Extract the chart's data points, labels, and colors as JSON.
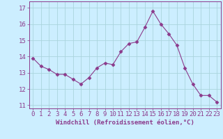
{
  "x": [
    0,
    1,
    2,
    3,
    4,
    5,
    6,
    7,
    8,
    9,
    10,
    11,
    12,
    13,
    14,
    15,
    16,
    17,
    18,
    19,
    20,
    21,
    22,
    23
  ],
  "y": [
    13.9,
    13.4,
    13.2,
    12.9,
    12.9,
    12.6,
    12.3,
    12.7,
    13.3,
    13.6,
    13.5,
    14.3,
    14.8,
    14.9,
    15.8,
    16.8,
    16.0,
    15.4,
    14.7,
    13.3,
    12.3,
    11.6,
    11.6,
    11.2
  ],
  "line_color": "#8b3a8b",
  "marker": "D",
  "marker_size": 2.5,
  "bg_color": "#cceeff",
  "grid_color": "#aad4dd",
  "xlabel": "Windchill (Refroidissement éolien,°C)",
  "xlabel_fontsize": 6.5,
  "tick_fontsize": 6.5,
  "ylim": [
    10.8,
    17.4
  ],
  "xlim": [
    -0.5,
    23.5
  ],
  "yticks": [
    11,
    12,
    13,
    14,
    15,
    16,
    17
  ],
  "xticks": [
    0,
    1,
    2,
    3,
    4,
    5,
    6,
    7,
    8,
    9,
    10,
    11,
    12,
    13,
    14,
    15,
    16,
    17,
    18,
    19,
    20,
    21,
    22,
    23
  ]
}
